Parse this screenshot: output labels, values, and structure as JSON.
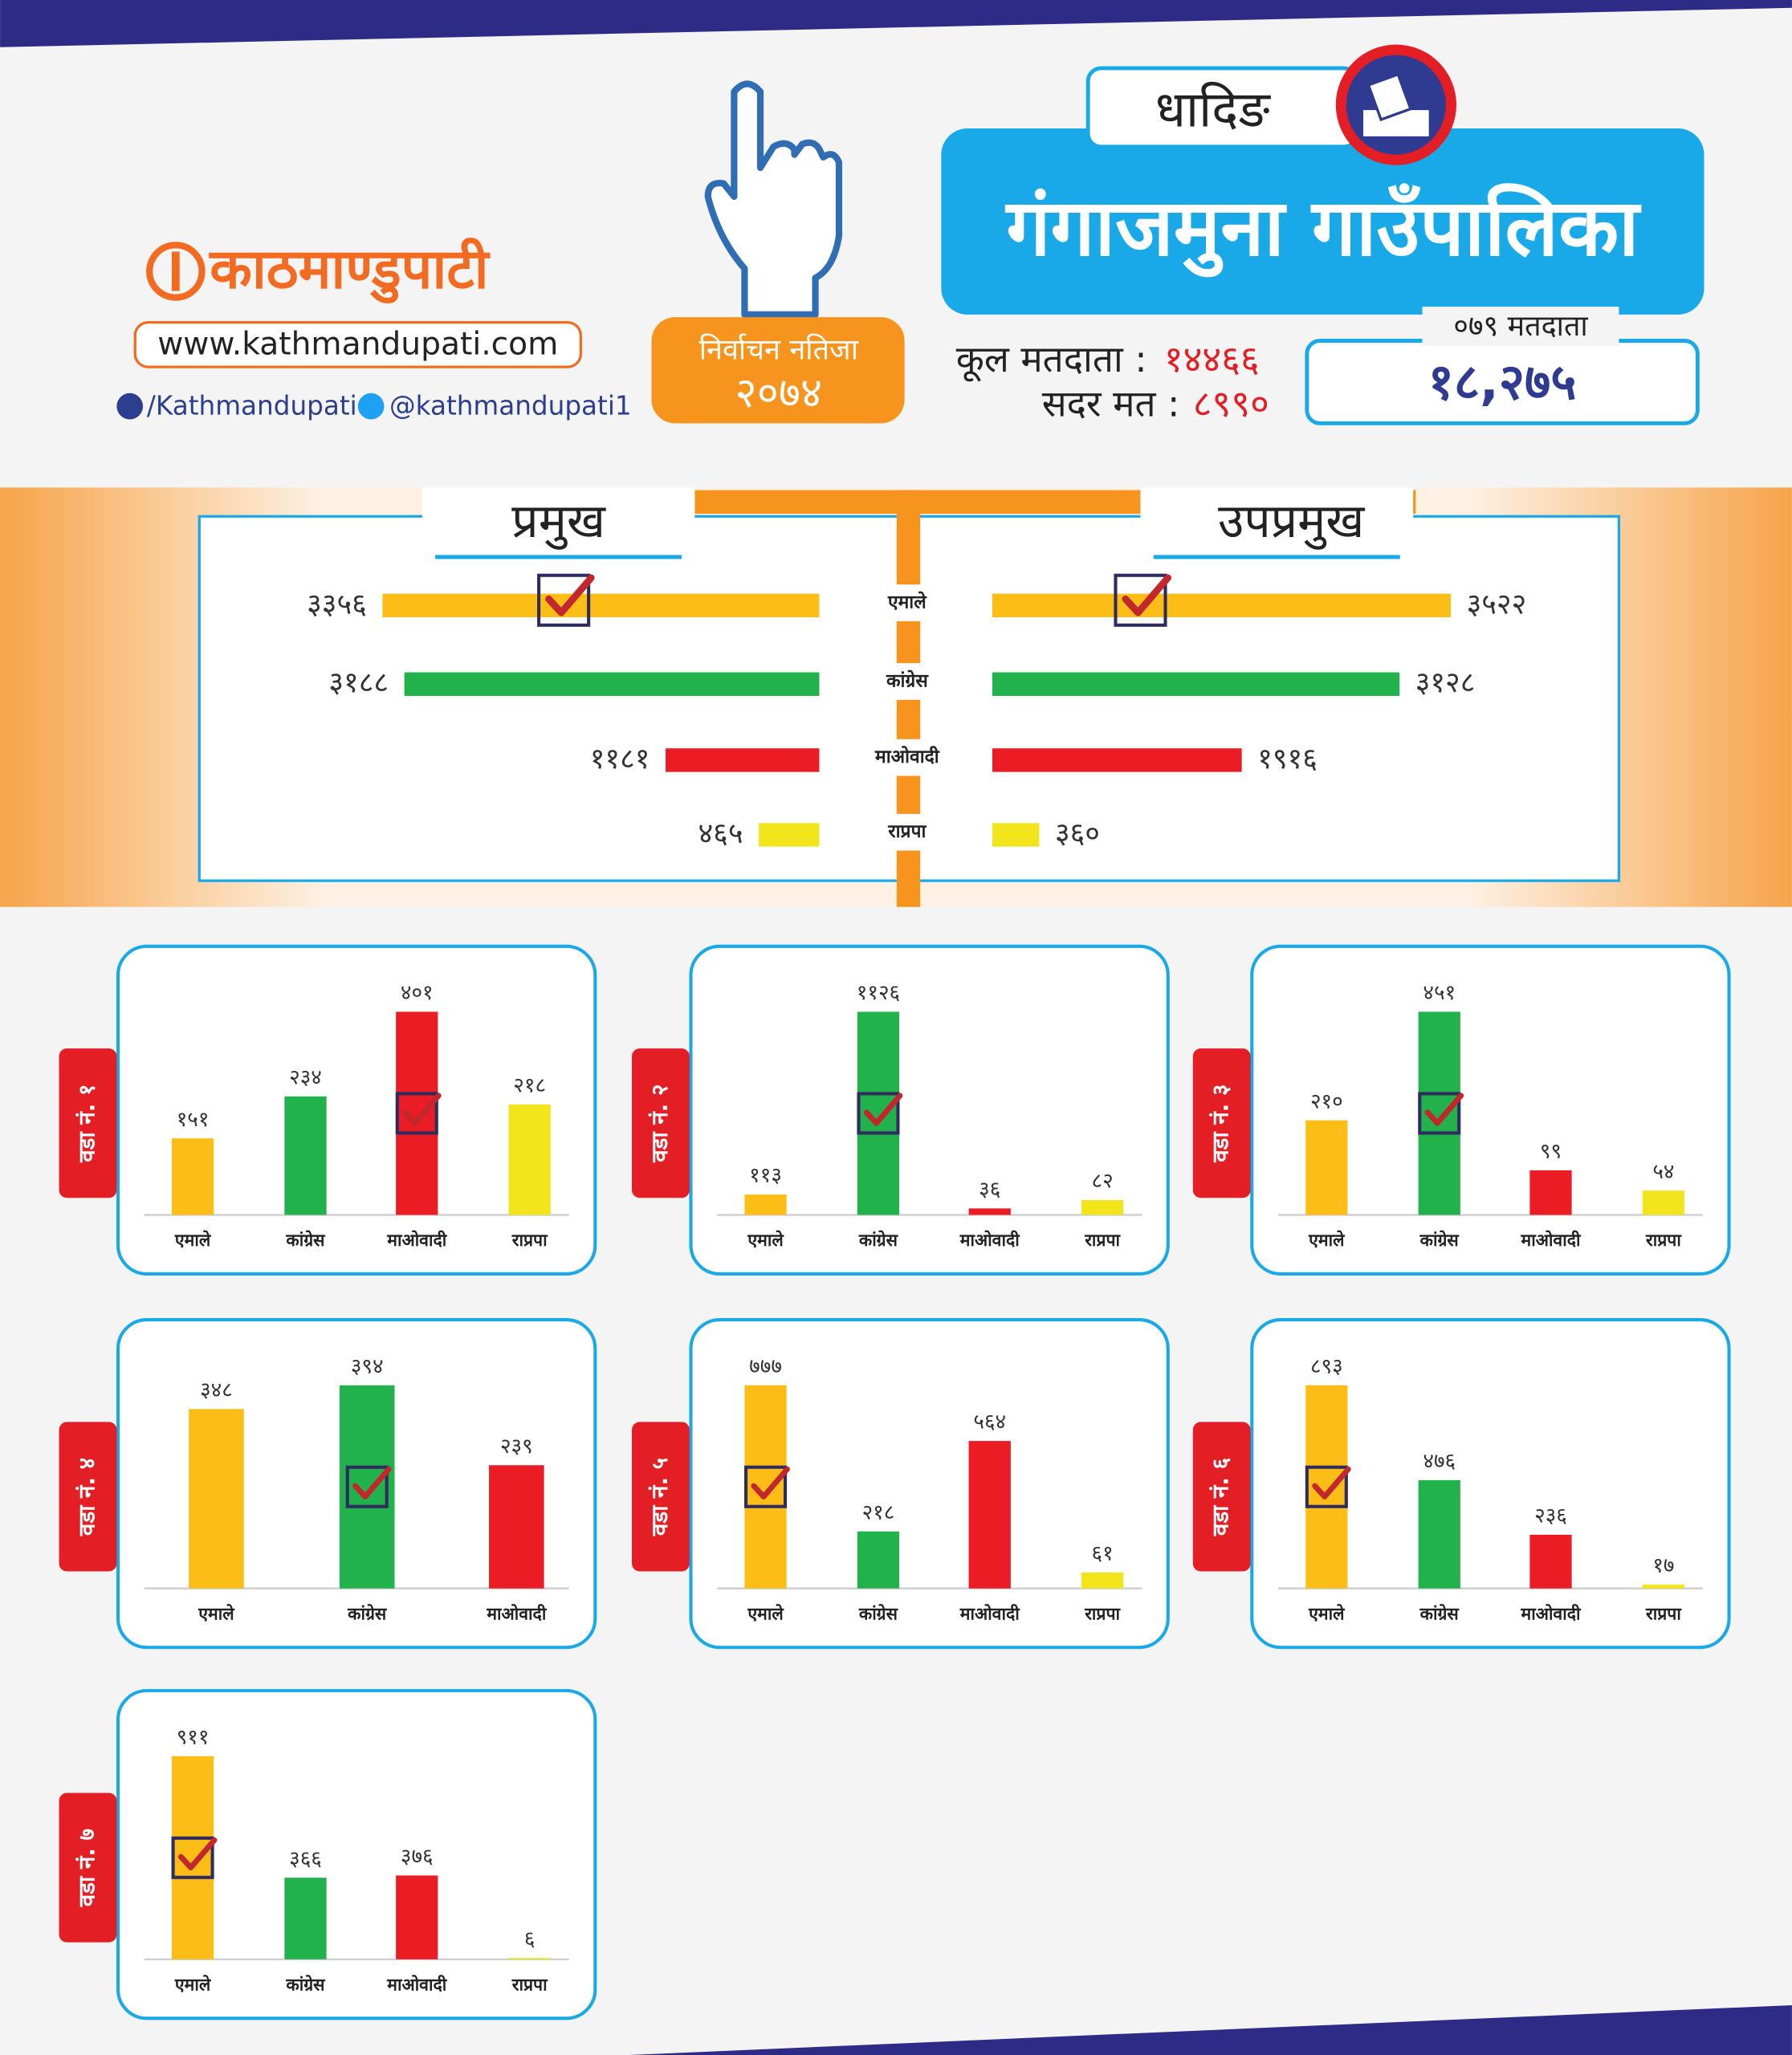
{
  "brand": {
    "name": "काठमाण्डुपाटी",
    "url": "www.kathmandupati.com",
    "facebook": "/Kathmandupati",
    "twitter": "@kathmandupati1"
  },
  "header": {
    "district": "धादिङ",
    "municipality": "गंगाजमुना गाउँपालिका",
    "badge_title": "निर्वाचन नतिजा",
    "badge_year": "२०७४",
    "total_voters_label": "कूल मतदाता :",
    "total_voters": "१४४६६",
    "valid_votes_label": "सदर मत :",
    "valid_votes": "८९९०",
    "voters_079_label": "०७९ मतदाता",
    "voters_079": "१८,२७५"
  },
  "chart_data": [
    {
      "type": "butterfly",
      "categories": [
        "एमाले",
        "कांग्रेस",
        "माओवादी",
        "राप्रपा"
      ],
      "colors": [
        "#fbbd16",
        "#21b24b",
        "#ec1c24",
        "#f2e51c"
      ],
      "series": [
        {
          "name": "प्रमुख",
          "values": [
            3356,
            3188,
            1181,
            465
          ],
          "value_labels": [
            "३३५६",
            "३१८८",
            "११८१",
            "४६५"
          ],
          "winner": 0
        },
        {
          "name": "उपप्रमुख",
          "values": [
            3522,
            3128,
            1916,
            360
          ],
          "value_labels": [
            "३५२२",
            "३१२८",
            "१९१६",
            "३६०"
          ],
          "winner": 0
        }
      ]
    },
    {
      "type": "bar",
      "title": "वडा नं. १",
      "categories": [
        "एमाले",
        "कांग्रेस",
        "माओवादी",
        "राप्रपा"
      ],
      "colors": [
        "#fbbd16",
        "#21b24b",
        "#ec1c24",
        "#f2e51c"
      ],
      "values": [
        151,
        234,
        401,
        218
      ],
      "value_labels": [
        "१५१",
        "२३४",
        "४०१",
        "२१८"
      ],
      "winner": 2
    },
    {
      "type": "bar",
      "title": "वडा नं. २",
      "categories": [
        "एमाले",
        "कांग्रेस",
        "माओवादी",
        "राप्रपा"
      ],
      "colors": [
        "#fbbd16",
        "#21b24b",
        "#ec1c24",
        "#f2e51c"
      ],
      "values": [
        113,
        1126,
        36,
        82
      ],
      "value_labels": [
        "११३",
        "११२६",
        "३६",
        "८२"
      ],
      "winner": 1
    },
    {
      "type": "bar",
      "title": "वडा नं. ३",
      "categories": [
        "एमाले",
        "कांग्रेस",
        "माओवादी",
        "राप्रपा"
      ],
      "colors": [
        "#fbbd16",
        "#21b24b",
        "#ec1c24",
        "#f2e51c"
      ],
      "values": [
        210,
        451,
        99,
        54
      ],
      "value_labels": [
        "२१०",
        "४५१",
        "९९",
        "५४"
      ],
      "winner": 1
    },
    {
      "type": "bar",
      "title": "वडा नं. ४",
      "categories": [
        "एमाले",
        "कांग्रेस",
        "माओवादी"
      ],
      "colors": [
        "#fbbd16",
        "#21b24b",
        "#ec1c24"
      ],
      "values": [
        348,
        394,
        239
      ],
      "value_labels": [
        "३४८",
        "३९४",
        "२३९"
      ],
      "winner": 1
    },
    {
      "type": "bar",
      "title": "वडा नं. ५",
      "categories": [
        "एमाले",
        "कांग्रेस",
        "माओवादी",
        "राप्रपा"
      ],
      "colors": [
        "#fbbd16",
        "#21b24b",
        "#ec1c24",
        "#f2e51c"
      ],
      "values": [
        777,
        218,
        564,
        61
      ],
      "value_labels": [
        "७७७",
        "२१८",
        "५६४",
        "६१"
      ],
      "winner": 0
    },
    {
      "type": "bar",
      "title": "वडा नं. ६",
      "categories": [
        "एमाले",
        "कांग्रेस",
        "माओवादी",
        "राप्रपा"
      ],
      "colors": [
        "#fbbd16",
        "#21b24b",
        "#ec1c24",
        "#f2e51c"
      ],
      "values": [
        893,
        476,
        236,
        17
      ],
      "value_labels": [
        "८९३",
        "४७६",
        "२३६",
        "१७"
      ],
      "winner": 0
    },
    {
      "type": "bar",
      "title": "वडा नं. ७",
      "categories": [
        "एमाले",
        "कांग्रेस",
        "माओवादी",
        "राप्रपा"
      ],
      "colors": [
        "#fbbd16",
        "#21b24b",
        "#ec1c24",
        "#f2e51c"
      ],
      "values": [
        911,
        366,
        376,
        6
      ],
      "value_labels": [
        "९११",
        "३६६",
        "३७६",
        "६"
      ],
      "winner": 0
    }
  ]
}
